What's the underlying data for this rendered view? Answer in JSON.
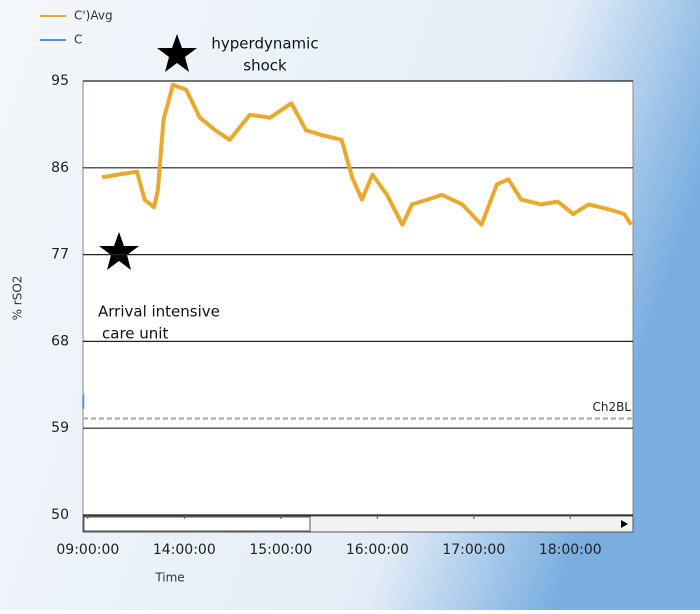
{
  "chart_data": {
    "type": "line",
    "y_label": "% rSO2",
    "x_label": "Time",
    "xlim": [
      8.75,
      18.65
    ],
    "xticks": [
      {
        "value": 9,
        "label": "09:00:00"
      },
      {
        "value": 14,
        "label": "14:00:00"
      },
      {
        "value": 15,
        "label": "15:00:00"
      },
      {
        "value": 16,
        "label": "16:00:00"
      },
      {
        "value": 17,
        "label": "17:00:00"
      },
      {
        "value": 18,
        "label": "18:00:00"
      }
    ],
    "ylim": [
      50,
      95
    ],
    "yticks": [
      50,
      59,
      68,
      77,
      86,
      95
    ],
    "grid": true,
    "series": [
      {
        "name": "C')Avg",
        "color": "#e8a92c",
        "x": [
          9.74,
          10.57,
          11.55,
          11.94,
          12.43,
          12.63,
          12.92,
          13.41,
          14.02,
          14.16,
          14.32,
          14.47,
          14.68,
          14.89,
          15.11,
          15.26,
          15.42,
          15.63,
          15.74,
          15.84,
          15.95,
          16.1,
          16.26,
          16.36,
          16.52,
          16.67,
          16.88,
          17.08,
          17.24,
          17.36,
          17.49,
          17.7,
          17.87,
          18.03,
          18.19,
          18.4,
          18.56,
          18.63
        ],
        "values": [
          85.0,
          85.3,
          85.6,
          82.7,
          81.9,
          83.7,
          91.0,
          94.6,
          94.1,
          91.2,
          89.9,
          88.9,
          91.5,
          91.2,
          92.7,
          89.9,
          89.4,
          88.9,
          85.0,
          82.7,
          85.3,
          83.2,
          80.1,
          82.2,
          82.7,
          83.2,
          82.2,
          80.1,
          84.3,
          84.8,
          82.7,
          82.2,
          82.5,
          81.2,
          82.2,
          81.7,
          81.2,
          80.1
        ]
      },
      {
        "name": "C",
        "color": "#5b8fe0",
        "x": [
          8.76,
          8.77
        ],
        "values": [
          61,
          62.5
        ]
      }
    ],
    "reference_line": {
      "label": "Ch2BL",
      "value": 60.0
    },
    "annotations": [
      {
        "text": [
          "hyperdynamic",
          "shock"
        ]
      },
      {
        "text": [
          "Arrival intensive",
          "care unit"
        ]
      }
    ]
  }
}
